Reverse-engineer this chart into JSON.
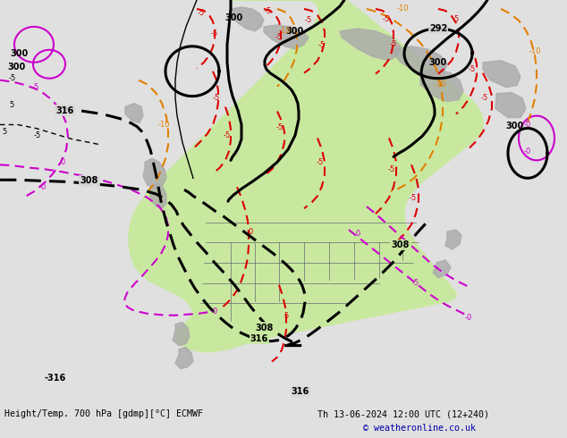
{
  "title_left": "Height/Temp. 700 hPa [gdmp][°C] ECMWF",
  "title_right": "Th 13-06-2024 12:00 UTC (12+240)",
  "copyright": "© weatheronline.co.uk",
  "bg_color": "#e0e0e0",
  "land_green": "#c8e8a0",
  "land_gray": "#aaaaaa",
  "ocean_color": "#d8d8d8",
  "black": "#000000",
  "red": "#dd0000",
  "magenta": "#cc00cc",
  "orange": "#e08000",
  "dark_blue": "#0000aa",
  "figsize": [
    6.34,
    4.9
  ],
  "dpi": 100
}
